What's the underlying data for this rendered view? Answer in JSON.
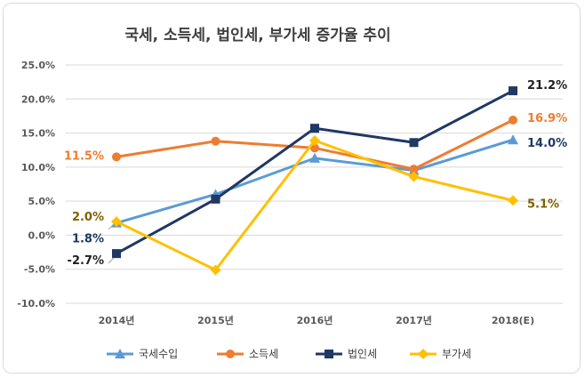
{
  "chart_data": {
    "type": "line",
    "title": "국세, 소득세, 법인세, 부가세 증가율 추이",
    "categories": [
      "2014년",
      "2015년",
      "2016년",
      "2017년",
      "2018(E)"
    ],
    "ylim": [
      -10,
      25
    ],
    "yticks": [
      "-10.0%",
      "-5.0%",
      "0.0%",
      "5.0%",
      "10.0%",
      "15.0%",
      "20.0%",
      "25.0%"
    ],
    "grid": true,
    "legend_position": "bottom",
    "series": [
      {
        "name": "국세수입",
        "color": "#5b9bd5",
        "marker": "triangle",
        "values": [
          1.8,
          6.0,
          11.3,
          9.5,
          14.0
        ],
        "labels": [
          "1.8%",
          "",
          "",
          "",
          "14.0%"
        ],
        "label_color": "#1f3864"
      },
      {
        "name": "소득세",
        "color": "#ed7d31",
        "marker": "circle",
        "values": [
          11.5,
          13.8,
          12.8,
          9.7,
          16.9
        ],
        "labels": [
          "11.5%",
          "",
          "",
          "",
          "16.9%"
        ],
        "label_color": "#ed7d31"
      },
      {
        "name": "법인세",
        "color": "#1f3864",
        "marker": "square",
        "values": [
          -2.7,
          5.3,
          15.7,
          13.6,
          21.2
        ],
        "labels": [
          "-2.7%",
          "",
          "",
          "",
          "21.2%"
        ],
        "label_color": "#1f1f1f"
      },
      {
        "name": "부가세",
        "color": "#ffc000",
        "marker": "diamond",
        "values": [
          2.0,
          -5.1,
          13.9,
          8.6,
          5.1
        ],
        "labels": [
          "2.0%",
          "",
          "",
          "",
          "5.1%"
        ],
        "label_color": "#7f6000"
      }
    ]
  }
}
